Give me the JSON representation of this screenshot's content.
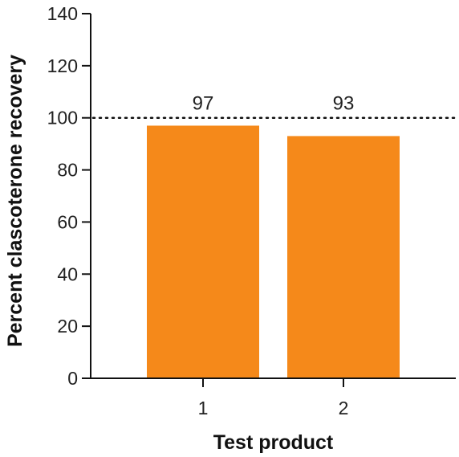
{
  "chart_data": {
    "type": "bar",
    "categories": [
      "1",
      "2"
    ],
    "values": [
      97,
      93
    ],
    "data_labels": [
      "97",
      "93"
    ],
    "title": "",
    "xlabel": "Test product",
    "ylabel": "Percent clascoterone recovery",
    "ylim": [
      0,
      140
    ],
    "yticks": [
      0,
      20,
      40,
      60,
      80,
      100,
      120,
      140
    ],
    "reference_line": 100,
    "bar_color": "#F5891A",
    "grid": false,
    "legend": "none"
  }
}
